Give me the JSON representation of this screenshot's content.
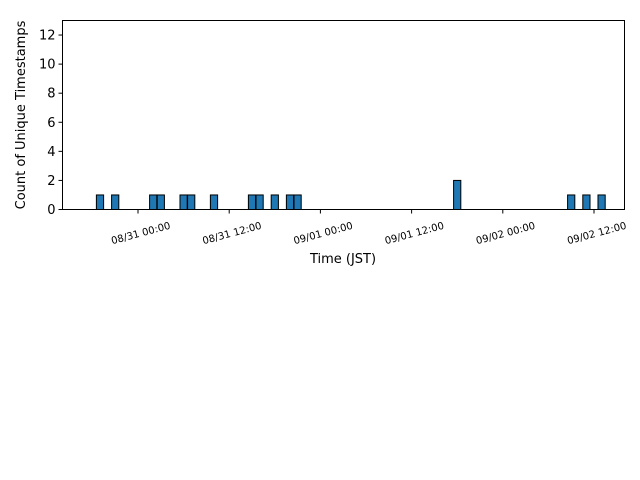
{
  "chart_data": {
    "type": "bar",
    "xlabel": "Time (JST)",
    "ylabel": "Count of Unique Timestamps",
    "title": "",
    "ylim": [
      0,
      13
    ],
    "yticks": [
      0,
      2,
      4,
      6,
      8,
      10,
      12
    ],
    "xlim_hours_from_0830_0000": [
      -17.3,
      68.8
    ],
    "xticks": [
      {
        "label": "08/31 00:00",
        "hour": 24
      },
      {
        "label": "08/31 12:00",
        "hour": 36
      },
      {
        "label": "09/01 00:00",
        "hour": 48
      },
      {
        "label": "09/01 12:00",
        "hour": 60
      },
      {
        "label": "09/02 00:00",
        "hour": 72
      },
      {
        "label": "09/02 12:00",
        "hour": 84
      }
    ],
    "bar_width_hours": 0.95,
    "bars": [
      {
        "time": "08/30 19:00",
        "value": 1
      },
      {
        "time": "08/30 21:00",
        "value": 1
      },
      {
        "time": "08/31 02:00",
        "value": 1
      },
      {
        "time": "08/31 03:00",
        "value": 1
      },
      {
        "time": "08/31 06:00",
        "value": 1
      },
      {
        "time": "08/31 07:00",
        "value": 1
      },
      {
        "time": "08/31 10:00",
        "value": 1
      },
      {
        "time": "08/31 15:00",
        "value": 1
      },
      {
        "time": "08/31 16:00",
        "value": 1
      },
      {
        "time": "08/31 18:00",
        "value": 1
      },
      {
        "time": "08/31 20:00",
        "value": 1
      },
      {
        "time": "08/31 21:00",
        "value": 1
      },
      {
        "time": "09/01 18:00",
        "value": 2
      },
      {
        "time": "09/02 09:00",
        "value": 1
      },
      {
        "time": "09/02 11:00",
        "value": 1
      },
      {
        "time": "09/02 13:00",
        "value": 1
      }
    ],
    "bar_color": "#1f77b4",
    "edge_color": "#000000",
    "grid": false,
    "legend": "none"
  }
}
